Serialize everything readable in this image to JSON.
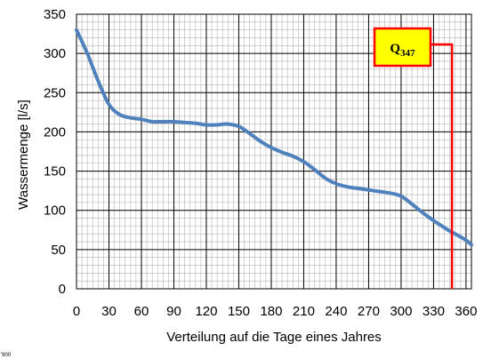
{
  "chart_data": {
    "type": "line",
    "title": "",
    "xlabel": "Verteilung auf die Tage eines Jahres",
    "ylabel": "Wassermenge [l/s]",
    "xlim": [
      0,
      365
    ],
    "ylim": [
      0,
      350
    ],
    "xticks": [
      0,
      30,
      60,
      90,
      120,
      150,
      180,
      210,
      240,
      270,
      300,
      330,
      360
    ],
    "yticks": [
      0,
      50,
      100,
      150,
      200,
      250,
      300,
      350
    ],
    "grid": true,
    "series": [
      {
        "name": "",
        "color": "#4f81bd",
        "x": [
          0,
          10,
          20,
          30,
          40,
          50,
          60,
          70,
          80,
          90,
          100,
          110,
          120,
          130,
          140,
          150,
          160,
          170,
          180,
          190,
          200,
          210,
          220,
          230,
          240,
          250,
          260,
          270,
          280,
          290,
          300,
          310,
          320,
          330,
          340,
          347,
          350,
          360,
          365
        ],
        "y": [
          330,
          300,
          265,
          235,
          222,
          218,
          216,
          213,
          213,
          213,
          212,
          211,
          209,
          209,
          210,
          207,
          198,
          188,
          180,
          174,
          169,
          162,
          152,
          141,
          134,
          130,
          128,
          126,
          124,
          122,
          118,
          108,
          97,
          87,
          78,
          72,
          70,
          62,
          56
        ]
      }
    ],
    "annotation": {
      "label_main": "Q",
      "label_sub": "347",
      "marker_day": 347,
      "box_color": "#ffff00",
      "line_color": "#ff0000"
    },
    "footnote": "'900"
  }
}
